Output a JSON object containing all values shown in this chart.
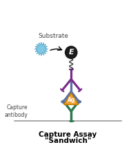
{
  "title_line1": "Capture Assay",
  "title_line2": "\"Sandwich\"",
  "substrate_label": "Substrate",
  "capture_label": "Capture\nantibody",
  "antigen_label": "Ag",
  "enzyme_label": "E",
  "bg_color": "#ffffff",
  "substrate_color": "#7ec8e3",
  "enzyme_color": "#1a1a1a",
  "enzyme_text_color": "#ffffff",
  "purple_ab_color": "#7b2d8b",
  "blue_ab_color": "#5a6fa8",
  "green_ab_color": "#2d7a4f",
  "antigen_color": "#f0a030",
  "antigen_outline": "#c07800",
  "surface_color": "#999999",
  "title_color": "#000000",
  "label_color": "#444444",
  "arrow_color": "#000000",
  "wavy_color": "#333333",
  "fig_width": 1.9,
  "fig_height": 2.14,
  "dpi": 100
}
